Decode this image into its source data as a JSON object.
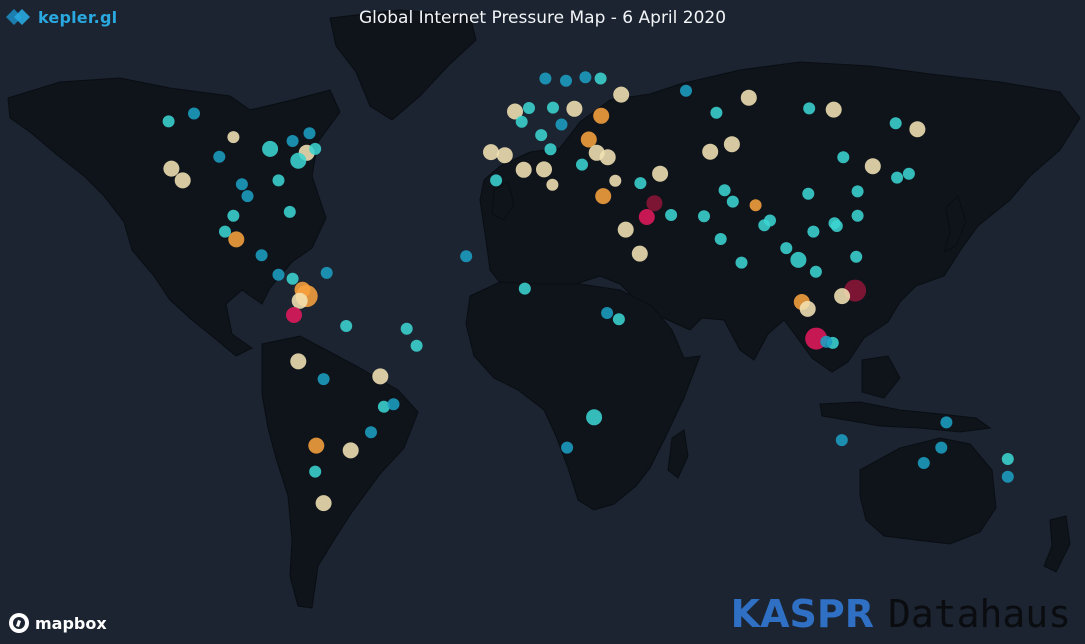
{
  "header": {
    "brand_label": "kepler.gl",
    "brand_icon": "kepler-logo-icon",
    "title": "Global Internet Pressure Map - 6 April 2020"
  },
  "footer": {
    "attribution_label": "mapbox",
    "attribution_icon": "mapbox-logo-icon",
    "watermark_primary": "KASPR",
    "watermark_secondary": "Datahaus"
  },
  "colors": {
    "ocean": "#1b2430",
    "land": "#0f141b",
    "low_pressure": "#1c9ec2",
    "low_mid_pressure": "#3bd4d0",
    "mid_pressure": "#f3e3b4",
    "high_mid_pressure": "#f7a13d",
    "high_pressure": "#e0195b",
    "extreme_pressure": "#8c1438"
  },
  "map_points": [
    {
      "lon": -100,
      "lat": 45,
      "level": 3,
      "size": 1
    },
    {
      "lon": -118,
      "lat": 34,
      "level": 3,
      "size": 2
    },
    {
      "lon": -122,
      "lat": 37,
      "level": 3,
      "size": 2
    },
    {
      "lon": -105,
      "lat": 40,
      "level": 1,
      "size": 1
    },
    {
      "lon": -97,
      "lat": 33,
      "level": 1,
      "size": 1
    },
    {
      "lon": -95,
      "lat": 30,
      "level": 1,
      "size": 1
    },
    {
      "lon": -87,
      "lat": 42,
      "level": 2,
      "size": 2
    },
    {
      "lon": -84,
      "lat": 34,
      "level": 2,
      "size": 1
    },
    {
      "lon": -80,
      "lat": 26,
      "level": 2,
      "size": 1
    },
    {
      "lon": -74,
      "lat": 41,
      "level": 3,
      "size": 2
    },
    {
      "lon": -77,
      "lat": 39,
      "level": 2,
      "size": 2
    },
    {
      "lon": -71,
      "lat": 42,
      "level": 2,
      "size": 1
    },
    {
      "lon": -79,
      "lat": 44,
      "level": 1,
      "size": 1
    },
    {
      "lon": -73,
      "lat": 46,
      "level": 1,
      "size": 1
    },
    {
      "lon": -123,
      "lat": 49,
      "level": 2,
      "size": 1
    },
    {
      "lon": -114,
      "lat": 51,
      "level": 1,
      "size": 1
    },
    {
      "lon": -99,
      "lat": 19,
      "level": 4,
      "size": 2
    },
    {
      "lon": -103,
      "lat": 21,
      "level": 2,
      "size": 1
    },
    {
      "lon": -100,
      "lat": 25,
      "level": 2,
      "size": 1
    },
    {
      "lon": -90,
      "lat": 15,
      "level": 1,
      "size": 1
    },
    {
      "lon": -84,
      "lat": 10,
      "level": 1,
      "size": 1
    },
    {
      "lon": -79,
      "lat": 9,
      "level": 2,
      "size": 1
    },
    {
      "lon": -74,
      "lat": 4.6,
      "level": 4,
      "size": 3
    },
    {
      "lon": -75.5,
      "lat": 6.2,
      "level": 4,
      "size": 2
    },
    {
      "lon": -76.5,
      "lat": 3.4,
      "level": 3,
      "size": 2
    },
    {
      "lon": -66.9,
      "lat": 10.5,
      "level": 1,
      "size": 1
    },
    {
      "lon": -78.5,
      "lat": -0.2,
      "level": 5,
      "size": 2
    },
    {
      "lon": -77,
      "lat": -12,
      "level": 3,
      "size": 2
    },
    {
      "lon": -68,
      "lat": -16.5,
      "level": 1,
      "size": 1
    },
    {
      "lon": -60,
      "lat": -3,
      "level": 2,
      "size": 1
    },
    {
      "lon": -47.9,
      "lat": -15.8,
      "level": 3,
      "size": 2
    },
    {
      "lon": -38.5,
      "lat": -3.7,
      "level": 2,
      "size": 1
    },
    {
      "lon": -35,
      "lat": -8,
      "level": 2,
      "size": 1
    },
    {
      "lon": -46.6,
      "lat": -23.5,
      "level": 2,
      "size": 1
    },
    {
      "lon": -43.2,
      "lat": -22.9,
      "level": 1,
      "size": 1
    },
    {
      "lon": -51.2,
      "lat": -30,
      "level": 1,
      "size": 1
    },
    {
      "lon": -58.4,
      "lat": -34.6,
      "level": 3,
      "size": 2
    },
    {
      "lon": -70.6,
      "lat": -33.4,
      "level": 4,
      "size": 2
    },
    {
      "lon": -71,
      "lat": -40,
      "level": 2,
      "size": 1
    },
    {
      "lon": -68,
      "lat": -48,
      "level": 3,
      "size": 2
    },
    {
      "lon": -0.1,
      "lat": 51.5,
      "level": 3,
      "size": 2
    },
    {
      "lon": -3.7,
      "lat": 40.4,
      "level": 3,
      "size": 2
    },
    {
      "lon": -8.6,
      "lat": 41.2,
      "level": 3,
      "size": 2
    },
    {
      "lon": 2.3,
      "lat": 48.9,
      "level": 2,
      "size": 1
    },
    {
      "lon": 4.9,
      "lat": 52.4,
      "level": 2,
      "size": 1
    },
    {
      "lon": 13.4,
      "lat": 52.5,
      "level": 2,
      "size": 1
    },
    {
      "lon": 12.5,
      "lat": 41.9,
      "level": 2,
      "size": 1
    },
    {
      "lon": 9.2,
      "lat": 45.5,
      "level": 2,
      "size": 1
    },
    {
      "lon": 16.4,
      "lat": 48.2,
      "level": 1,
      "size": 1
    },
    {
      "lon": 21,
      "lat": 52.2,
      "level": 3,
      "size": 2
    },
    {
      "lon": 18,
      "lat": 59.3,
      "level": 1,
      "size": 1
    },
    {
      "lon": 10.7,
      "lat": 59.9,
      "level": 1,
      "size": 1
    },
    {
      "lon": 24.9,
      "lat": 60.2,
      "level": 1,
      "size": 1
    },
    {
      "lon": 37.6,
      "lat": 55.8,
      "level": 3,
      "size": 2
    },
    {
      "lon": 30.3,
      "lat": 59.9,
      "level": 2,
      "size": 1
    },
    {
      "lon": 30.5,
      "lat": 50.4,
      "level": 4,
      "size": 2
    },
    {
      "lon": 26.1,
      "lat": 44.4,
      "level": 4,
      "size": 2
    },
    {
      "lon": 23.7,
      "lat": 38,
      "level": 2,
      "size": 1
    },
    {
      "lon": 28.9,
      "lat": 41,
      "level": 3,
      "size": 2
    },
    {
      "lon": 32.8,
      "lat": 39.9,
      "level": 3,
      "size": 2
    },
    {
      "lon": 35.5,
      "lat": 33.9,
      "level": 3,
      "size": 1
    },
    {
      "lon": 31.2,
      "lat": 30,
      "level": 4,
      "size": 2
    },
    {
      "lon": 44.4,
      "lat": 33.3,
      "level": 2,
      "size": 1
    },
    {
      "lon": 51.4,
      "lat": 35.7,
      "level": 3,
      "size": 2
    },
    {
      "lon": 46.7,
      "lat": 24.7,
      "level": 5,
      "size": 2
    },
    {
      "lon": 55.3,
      "lat": 25.2,
      "level": 2,
      "size": 1
    },
    {
      "lon": 39.2,
      "lat": 21.5,
      "level": 3,
      "size": 2
    },
    {
      "lon": 44.2,
      "lat": 15.4,
      "level": 3,
      "size": 2
    },
    {
      "lon": 49.4,
      "lat": 28.2,
      "level": 6,
      "size": 2
    },
    {
      "lon": 3,
      "lat": 36.7,
      "level": 3,
      "size": 2
    },
    {
      "lon": -6.8,
      "lat": 34,
      "level": 2,
      "size": 1
    },
    {
      "lon": 10.2,
      "lat": 36.8,
      "level": 3,
      "size": 2
    },
    {
      "lon": 13.2,
      "lat": 32.9,
      "level": 3,
      "size": 1
    },
    {
      "lon": -17.4,
      "lat": 14.7,
      "level": 1,
      "size": 1
    },
    {
      "lon": 3.4,
      "lat": 6.5,
      "level": 2,
      "size": 1
    },
    {
      "lon": 32.6,
      "lat": 0.3,
      "level": 1,
      "size": 1
    },
    {
      "lon": 36.8,
      "lat": -1.3,
      "level": 2,
      "size": 1
    },
    {
      "lon": 28,
      "lat": -26.2,
      "level": 2,
      "size": 2
    },
    {
      "lon": 18.4,
      "lat": -33.9,
      "level": 1,
      "size": 1
    },
    {
      "lon": 69.2,
      "lat": 41.3,
      "level": 3,
      "size": 2
    },
    {
      "lon": 76.9,
      "lat": 43.2,
      "level": 3,
      "size": 2
    },
    {
      "lon": 71.4,
      "lat": 51.2,
      "level": 2,
      "size": 1
    },
    {
      "lon": 82.9,
      "lat": 55,
      "level": 3,
      "size": 2
    },
    {
      "lon": 60.6,
      "lat": 56.8,
      "level": 1,
      "size": 1
    },
    {
      "lon": 104.3,
      "lat": 52.3,
      "level": 2,
      "size": 1
    },
    {
      "lon": 113,
      "lat": 52,
      "level": 3,
      "size": 2
    },
    {
      "lon": 135,
      "lat": 48.5,
      "level": 2,
      "size": 1
    },
    {
      "lon": 142.7,
      "lat": 47,
      "level": 3,
      "size": 2
    },
    {
      "lon": 67,
      "lat": 24.9,
      "level": 2,
      "size": 1
    },
    {
      "lon": 74.3,
      "lat": 31.5,
      "level": 2,
      "size": 1
    },
    {
      "lon": 77.2,
      "lat": 28.6,
      "level": 2,
      "size": 1
    },
    {
      "lon": 72.9,
      "lat": 19.1,
      "level": 2,
      "size": 1
    },
    {
      "lon": 80.3,
      "lat": 13.1,
      "level": 2,
      "size": 1
    },
    {
      "lon": 88.4,
      "lat": 22.6,
      "level": 2,
      "size": 1
    },
    {
      "lon": 90.4,
      "lat": 23.8,
      "level": 2,
      "size": 1
    },
    {
      "lon": 85.3,
      "lat": 27.7,
      "level": 4,
      "size": 1
    },
    {
      "lon": 96.2,
      "lat": 16.8,
      "level": 2,
      "size": 1
    },
    {
      "lon": 100.5,
      "lat": 13.8,
      "level": 2,
      "size": 2
    },
    {
      "lon": 105.8,
      "lat": 21,
      "level": 2,
      "size": 1
    },
    {
      "lon": 106.7,
      "lat": 10.8,
      "level": 2,
      "size": 1
    },
    {
      "lon": 101.7,
      "lat": 3.1,
      "level": 4,
      "size": 2
    },
    {
      "lon": 103.8,
      "lat": 1.35,
      "level": 3,
      "size": 2
    },
    {
      "lon": 106.8,
      "lat": -6.2,
      "level": 5,
      "size": 3
    },
    {
      "lon": 112.7,
      "lat": -7.3,
      "level": 2,
      "size": 1
    },
    {
      "lon": 110.4,
      "lat": -7,
      "level": 1,
      "size": 1
    },
    {
      "lon": 116.4,
      "lat": 39.9,
      "level": 2,
      "size": 1
    },
    {
      "lon": 121.5,
      "lat": 31.2,
      "level": 2,
      "size": 1
    },
    {
      "lon": 114.1,
      "lat": 22.4,
      "level": 2,
      "size": 1
    },
    {
      "lon": 113.3,
      "lat": 23.1,
      "level": 2,
      "size": 1
    },
    {
      "lon": 104,
      "lat": 30.6,
      "level": 2,
      "size": 1
    },
    {
      "lon": 121.5,
      "lat": 25,
      "level": 2,
      "size": 1
    },
    {
      "lon": 126.9,
      "lat": 37.6,
      "level": 3,
      "size": 2
    },
    {
      "lon": 139.7,
      "lat": 35.7,
      "level": 2,
      "size": 1
    },
    {
      "lon": 135.5,
      "lat": 34.7,
      "level": 2,
      "size": 1
    },
    {
      "lon": 121,
      "lat": 14.6,
      "level": 2,
      "size": 1
    },
    {
      "lon": 120.6,
      "lat": 6,
      "level": 6,
      "size": 3
    },
    {
      "lon": 116,
      "lat": 4.6,
      "level": 3,
      "size": 2
    },
    {
      "lon": 151.2,
      "lat": -33.9,
      "level": 1,
      "size": 1
    },
    {
      "lon": 145,
      "lat": -37.8,
      "level": 1,
      "size": 1
    },
    {
      "lon": 153,
      "lat": -27.5,
      "level": 1,
      "size": 1
    },
    {
      "lon": 115.9,
      "lat": -32,
      "level": 1,
      "size": 1
    },
    {
      "lon": 174.8,
      "lat": -36.8,
      "level": 2,
      "size": 1
    },
    {
      "lon": 174.8,
      "lat": -41.3,
      "level": 1,
      "size": 1
    }
  ]
}
